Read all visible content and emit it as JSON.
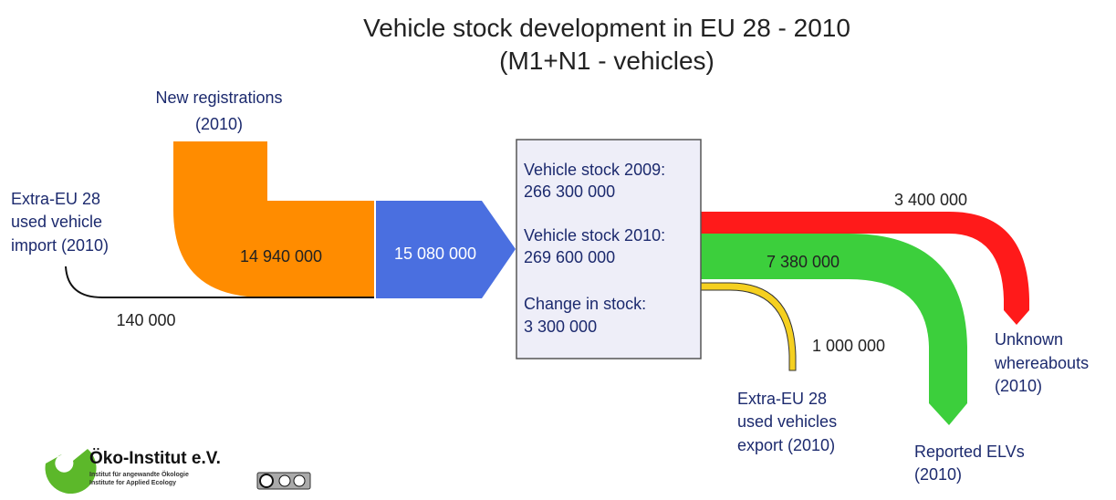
{
  "title": [
    "Vehicle stock development in EU 28 - 2010",
    "(M1+N1 - vehicles)"
  ],
  "nodes": {
    "new_registrations": [
      "New registrations",
      "(2010)"
    ],
    "import": [
      "Extra-EU 28",
      "used vehicle",
      "import (2010)"
    ],
    "stock": [
      "Vehicle stock 2009:",
      "266 300 000",
      "Vehicle stock 2010:",
      "269 600 000",
      "Change in stock:",
      "3 300 000"
    ],
    "unknown": [
      "Unknown",
      "whereabouts",
      "(2010)"
    ],
    "export": [
      "Extra-EU 28",
      "used vehicles",
      "export (2010)"
    ],
    "elv": [
      "Reported ELVs",
      "(2010)"
    ]
  },
  "flows": {
    "new_registrations": "14 940 000",
    "import": "140 000",
    "inflow": "15 080 000",
    "unknown": "3 400 000",
    "elv": "7 380 000",
    "export": "1 000 000"
  },
  "logo": {
    "name": "Öko-Institut e.V.",
    "line1": "Institut für angewandte Ökologie",
    "line2": "Institute for Applied Ecology"
  }
}
